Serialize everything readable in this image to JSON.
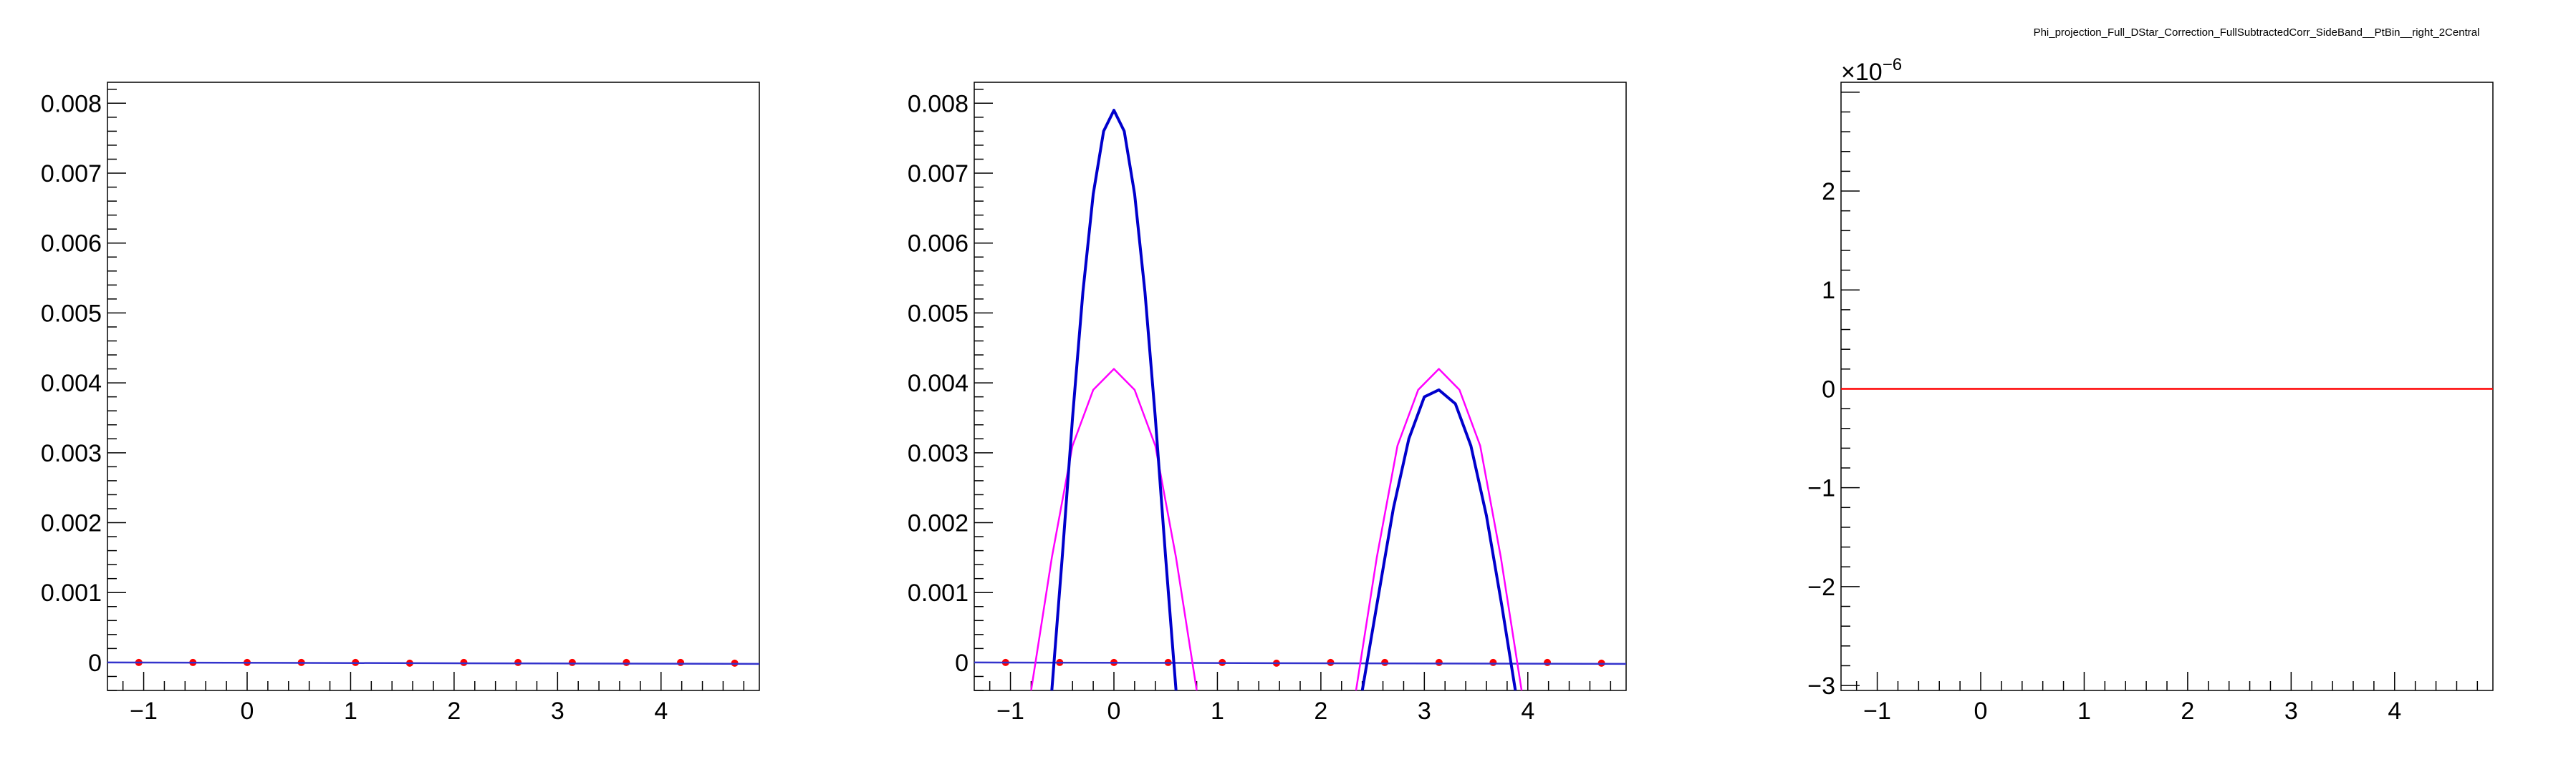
{
  "chart_data": [
    {
      "type": "scatter",
      "xlim": [
        -1.35,
        4.95
      ],
      "ylim": [
        -0.0004,
        0.0083
      ],
      "xticks": [
        -1,
        0,
        1,
        2,
        3,
        4
      ],
      "xticklabels": [
        "−1",
        "0",
        "1",
        "2",
        "3",
        "4"
      ],
      "yticks": [
        0,
        0.001,
        0.002,
        0.003,
        0.004,
        0.005,
        0.006,
        0.007,
        0.008
      ],
      "yticklabels": [
        "0",
        "0.001",
        "0.002",
        "0.003",
        "0.004",
        "0.005",
        "0.006",
        "0.007",
        "0.008"
      ],
      "series": [
        {
          "kind": "points",
          "color": "#ff0000",
          "x": [
            -1.047,
            -0.524,
            0.0,
            0.524,
            1.047,
            1.571,
            2.094,
            2.618,
            3.142,
            3.665,
            4.189,
            4.712
          ],
          "y": [
            0.0,
            0.0,
            0.0,
            0.0,
            0.0,
            -1e-05,
            0.0,
            0.0,
            0.0,
            0.0,
            0.0,
            -1e-05
          ]
        },
        {
          "kind": "line",
          "color": "#3333cc",
          "x": [
            -1.35,
            4.95
          ],
          "y": [
            0.0,
            -2e-05
          ]
        }
      ]
    },
    {
      "type": "line",
      "xlim": [
        -1.35,
        4.95
      ],
      "ylim": [
        -0.0004,
        0.0083
      ],
      "xticks": [
        -1,
        0,
        1,
        2,
        3,
        4
      ],
      "xticklabels": [
        "−1",
        "0",
        "1",
        "2",
        "3",
        "4"
      ],
      "yticks": [
        0,
        0.001,
        0.002,
        0.003,
        0.004,
        0.005,
        0.006,
        0.007,
        0.008
      ],
      "yticklabels": [
        "0",
        "0.001",
        "0.002",
        "0.003",
        "0.004",
        "0.005",
        "0.006",
        "0.007",
        "0.008"
      ],
      "series": [
        {
          "kind": "points",
          "color": "#ff0000",
          "x": [
            -1.047,
            -0.524,
            0.0,
            0.524,
            1.047,
            1.571,
            2.094,
            2.618,
            3.142,
            3.665,
            4.189,
            4.712
          ],
          "y": [
            0.0,
            0.0,
            0.0,
            0.0,
            0.0,
            -1e-05,
            0.0,
            0.0,
            0.0,
            0.0,
            0.0,
            -1e-05
          ]
        },
        {
          "kind": "line",
          "color": "#3333cc",
          "x": [
            -1.35,
            4.95
          ],
          "y": [
            0.0,
            -2e-05
          ]
        },
        {
          "kind": "line",
          "color": "#ff00ff",
          "x": [
            -0.8,
            -0.6,
            -0.4,
            -0.2,
            0.0,
            0.2,
            0.4,
            0.6,
            0.8
          ],
          "y": [
            -0.0004,
            0.0015,
            0.0031,
            0.0039,
            0.0042,
            0.0039,
            0.0031,
            0.0015,
            -0.0004
          ]
        },
        {
          "kind": "line",
          "color": "#ff00ff",
          "x": [
            2.34,
            2.54,
            2.74,
            2.94,
            3.14,
            3.34,
            3.54,
            3.74,
            3.94
          ],
          "y": [
            -0.0004,
            0.0015,
            0.0031,
            0.0039,
            0.0042,
            0.0039,
            0.0031,
            0.0015,
            -0.0004
          ]
        },
        {
          "kind": "line",
          "color": "#0000cc",
          "x": [
            -0.6,
            -0.5,
            -0.4,
            -0.3,
            -0.2,
            -0.1,
            0.0,
            0.1,
            0.2,
            0.3,
            0.4,
            0.5,
            0.6
          ],
          "y": [
            -0.0004,
            0.0015,
            0.0035,
            0.0053,
            0.0067,
            0.0076,
            0.0079,
            0.0076,
            0.0067,
            0.0053,
            0.0035,
            0.0015,
            -0.0004
          ]
        },
        {
          "kind": "line",
          "color": "#0000cc",
          "x": [
            2.4,
            2.55,
            2.7,
            2.85,
            3.0,
            3.14,
            3.3,
            3.45,
            3.6,
            3.75,
            3.88
          ],
          "y": [
            -0.0004,
            0.0009,
            0.0022,
            0.0032,
            0.0038,
            0.0039,
            0.0037,
            0.0031,
            0.0021,
            0.0008,
            -0.0004
          ]
        }
      ]
    },
    {
      "type": "line",
      "title": "Phi_projection_Full_DStar_Correction_FullSubtractedCorr_SideBand__PtBin__right_2Central",
      "exponent_label": "×10",
      "exponent_value": "−6",
      "xlim": [
        -1.35,
        4.95
      ],
      "ylim": [
        -3.05,
        3.1
      ],
      "xticks": [
        -1,
        0,
        1,
        2,
        3,
        4
      ],
      "xticklabels": [
        "−1",
        "0",
        "1",
        "2",
        "3",
        "4"
      ],
      "yticks": [
        -3,
        -2,
        -1,
        0,
        1,
        2
      ],
      "yticklabels": [
        "−3",
        "−2",
        "−1",
        "0",
        "1",
        "2"
      ],
      "series": [
        {
          "kind": "line",
          "color": "#ff0000",
          "x": [
            -1.35,
            4.95
          ],
          "y": [
            0,
            0
          ]
        }
      ]
    }
  ]
}
